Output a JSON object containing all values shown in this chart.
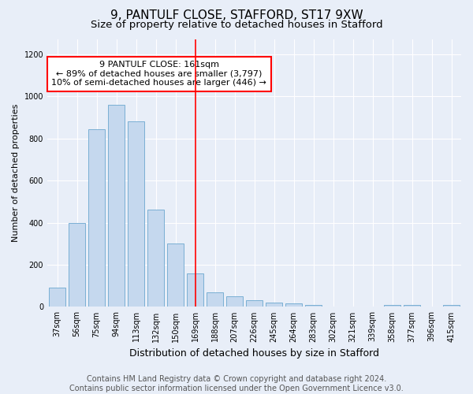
{
  "title1": "9, PANTULF CLOSE, STAFFORD, ST17 9XW",
  "title2": "Size of property relative to detached houses in Stafford",
  "xlabel": "Distribution of detached houses by size in Stafford",
  "ylabel": "Number of detached properties",
  "categories": [
    "37sqm",
    "56sqm",
    "75sqm",
    "94sqm",
    "113sqm",
    "132sqm",
    "150sqm",
    "169sqm",
    "188sqm",
    "207sqm",
    "226sqm",
    "245sqm",
    "264sqm",
    "283sqm",
    "302sqm",
    "321sqm",
    "339sqm",
    "358sqm",
    "377sqm",
    "396sqm",
    "415sqm"
  ],
  "values": [
    90,
    400,
    845,
    960,
    880,
    460,
    300,
    160,
    70,
    50,
    30,
    20,
    15,
    10,
    0,
    0,
    0,
    10,
    10,
    0,
    10
  ],
  "bar_color": "#c5d8ee",
  "bar_edge_color": "#7aafd4",
  "vline_color": "red",
  "annotation_text": "9 PANTULF CLOSE: 161sqm\n← 89% of detached houses are smaller (3,797)\n10% of semi-detached houses are larger (446) →",
  "annotation_box_color": "white",
  "annotation_box_edge": "red",
  "footer": "Contains HM Land Registry data © Crown copyright and database right 2024.\nContains public sector information licensed under the Open Government Licence v3.0.",
  "ylim": [
    0,
    1270
  ],
  "yticks": [
    0,
    200,
    400,
    600,
    800,
    1000,
    1200
  ],
  "background_color": "#e8eef8",
  "title1_fontsize": 11,
  "title2_fontsize": 9.5,
  "xlabel_fontsize": 9,
  "ylabel_fontsize": 8,
  "tick_fontsize": 7,
  "footer_fontsize": 7,
  "annotation_fontsize": 8
}
